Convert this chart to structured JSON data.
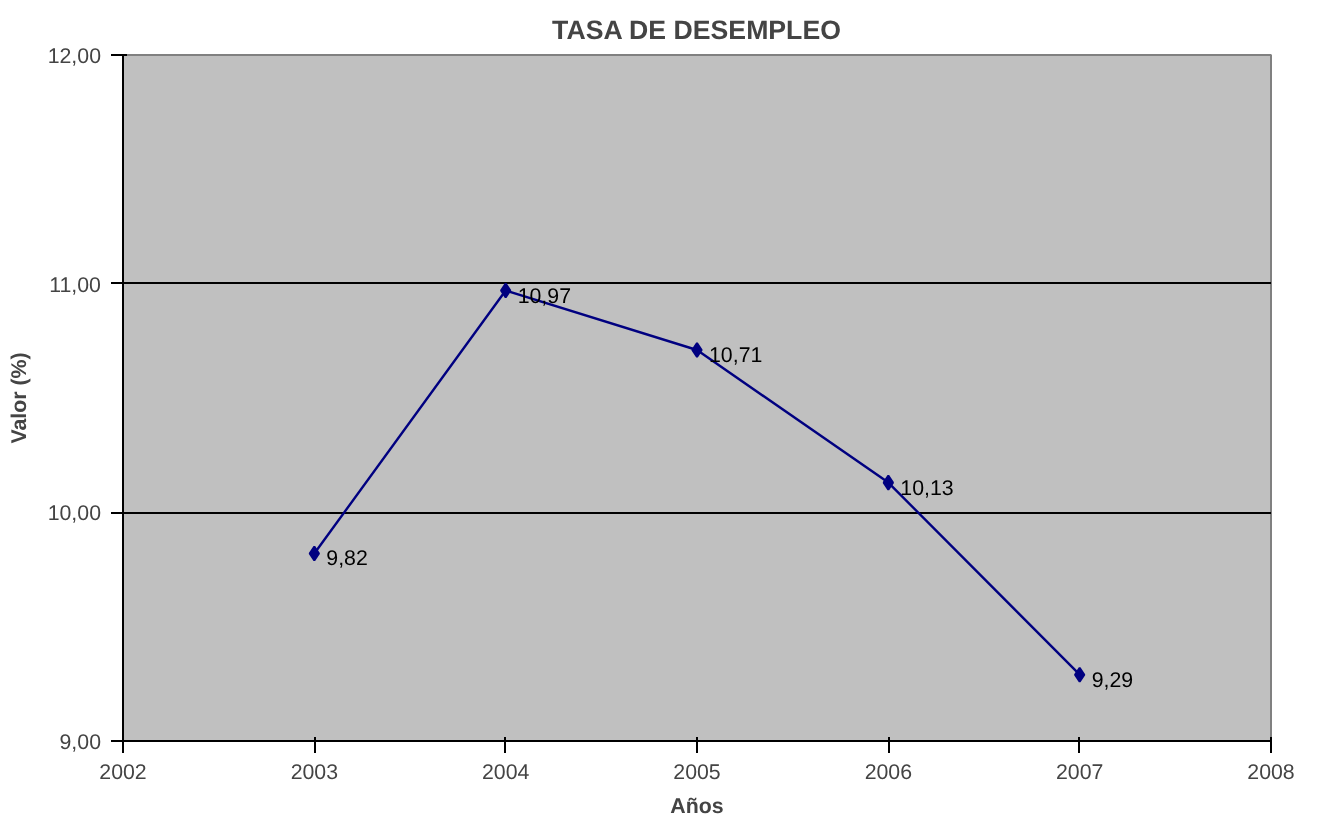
{
  "chart_data": {
    "type": "line",
    "title": "TASA DE DESEMPLEO",
    "xlabel": "Años",
    "ylabel": "Valor (%)",
    "x": [
      2003,
      2004,
      2005,
      2006,
      2007
    ],
    "series": [
      {
        "color": "#000080",
        "values": [
          9.82,
          10.97,
          10.71,
          10.13,
          9.29
        ],
        "value_labels": [
          "9,82",
          "10,97",
          "10,71",
          "10,13",
          "9,29"
        ]
      }
    ],
    "xlim": [
      2002,
      2008
    ],
    "xticks": [
      2002,
      2003,
      2004,
      2005,
      2006,
      2007,
      2008
    ],
    "ylim": [
      9,
      12
    ],
    "yticks": [
      {
        "value": 9,
        "label": "9,00"
      },
      {
        "value": 10,
        "label": "10,00"
      },
      {
        "value": 11,
        "label": "11,00"
      },
      {
        "value": 12,
        "label": "12,00"
      }
    ],
    "grid": "y",
    "marker": "diamond",
    "line_style": "solid"
  }
}
